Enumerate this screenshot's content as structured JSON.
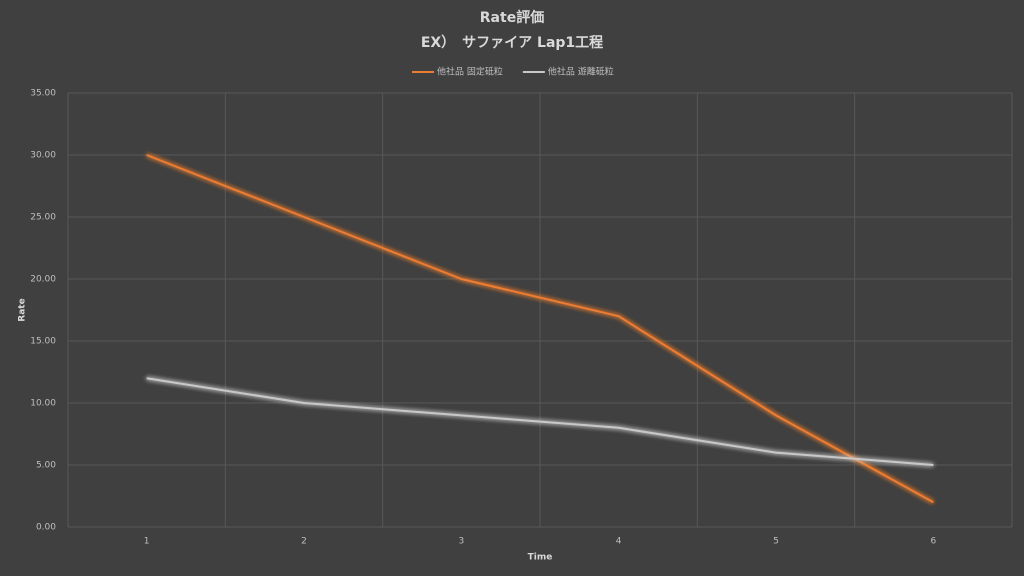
{
  "chart_data": {
    "type": "line",
    "title": "Rate評価",
    "subtitle": "EX）　サファイア Lap1工程",
    "x_label": "Time",
    "y_label": "Rate",
    "categories": [
      "1",
      "2",
      "3",
      "4",
      "5",
      "6"
    ],
    "series": [
      {
        "name": "他社品 固定砥粒",
        "color": "#ed7d31",
        "values": [
          30,
          25,
          20,
          17,
          9,
          2
        ]
      },
      {
        "name": "他社品 遊離砥粒",
        "color": "#c8c8c8",
        "values": [
          12,
          10,
          9,
          8,
          6,
          5
        ]
      }
    ],
    "ylim": [
      0,
      35
    ],
    "yticks": [
      {
        "value": 0,
        "label": "0.00"
      },
      {
        "value": 5,
        "label": "5.00"
      },
      {
        "value": 10,
        "label": "10.00"
      },
      {
        "value": 15,
        "label": "15.00"
      },
      {
        "value": 20,
        "label": "20.00"
      },
      {
        "value": 25,
        "label": "25.00"
      },
      {
        "value": 30,
        "label": "30.00"
      },
      {
        "value": 35,
        "label": "35.00"
      }
    ],
    "grid": true,
    "legend": "top"
  }
}
